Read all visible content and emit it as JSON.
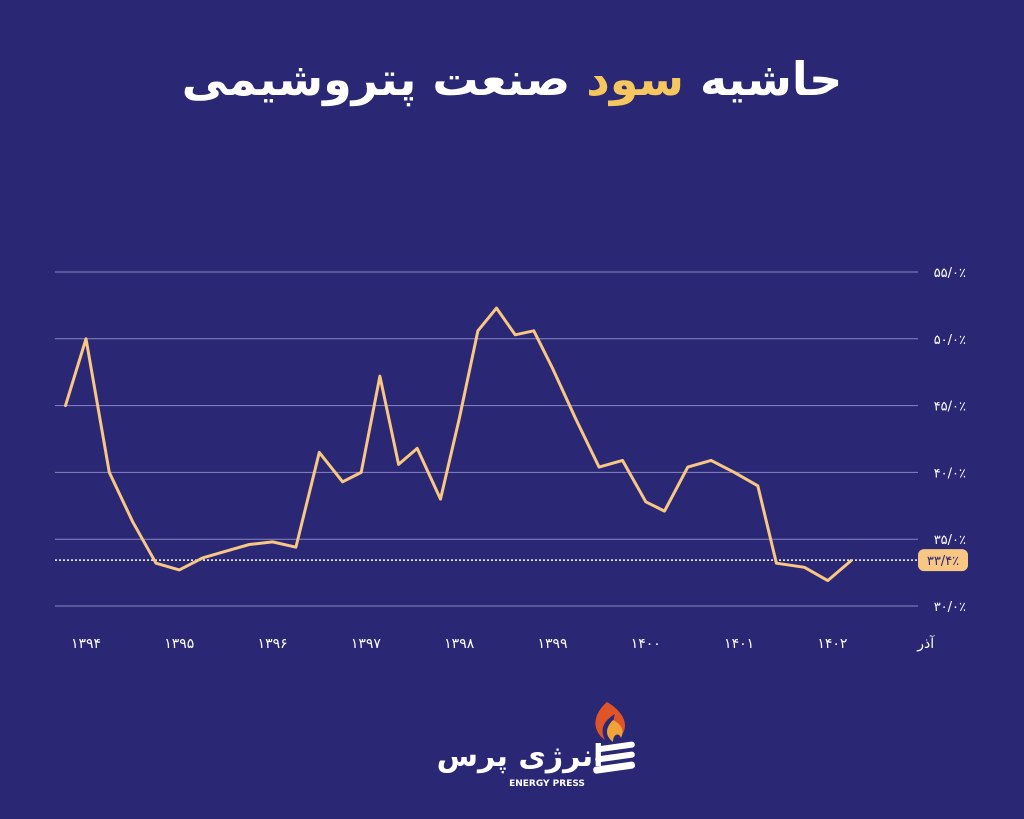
{
  "title": {
    "part_white": "حاشیه",
    "part_accent": "سود",
    "part_white2": "صنعت پتروشیمی"
  },
  "colors": {
    "background": "#2a2775",
    "line": "#f9c784",
    "grid": "#8a87c4",
    "accent": "#f6c75f",
    "badge": "#f9c784"
  },
  "chart_data": {
    "type": "line",
    "title": "حاشیه سود صنعت پتروشیمی",
    "xlabel": "",
    "ylabel": "",
    "ylim": [
      30,
      55
    ],
    "grid": true,
    "y_ticks": [
      {
        "value": 30,
        "label": "۳۰/۰٪"
      },
      {
        "value": 35,
        "label": "۳۵/۰٪"
      },
      {
        "value": 40,
        "label": "۴۰/۰٪"
      },
      {
        "value": 45,
        "label": "۴۵/۰٪"
      },
      {
        "value": 50,
        "label": "۵۰/۰٪"
      },
      {
        "value": 55,
        "label": "۵۵/۰٪"
      }
    ],
    "x_ticks": [
      {
        "t": 0.0,
        "label": "۱۳۹۴"
      },
      {
        "t": 1.0,
        "label": "۱۳۹۵"
      },
      {
        "t": 2.0,
        "label": "۱۳۹۶"
      },
      {
        "t": 3.0,
        "label": "۱۳۹۷"
      },
      {
        "t": 4.0,
        "label": "۱۳۹۸"
      },
      {
        "t": 5.0,
        "label": "۱۳۹۹"
      },
      {
        "t": 6.0,
        "label": "۱۴۰۰"
      },
      {
        "t": 7.0,
        "label": "۱۴۰۱"
      },
      {
        "t": 8.0,
        "label": "۱۴۰۲"
      },
      {
        "t": 9.0,
        "label": "آذر"
      }
    ],
    "reference": {
      "value": 33.4,
      "label": "۳۳/۴٪"
    },
    "series": [
      {
        "values": [
          {
            "t": -0.22,
            "y": 45.0
          },
          {
            "t": 0.0,
            "y": 50.0
          },
          {
            "t": 0.25,
            "y": 40.0
          },
          {
            "t": 0.5,
            "y": 36.3
          },
          {
            "t": 0.75,
            "y": 33.2
          },
          {
            "t": 1.0,
            "y": 32.7
          },
          {
            "t": 1.25,
            "y": 33.6
          },
          {
            "t": 1.5,
            "y": 34.1
          },
          {
            "t": 1.75,
            "y": 34.6
          },
          {
            "t": 2.0,
            "y": 34.8
          },
          {
            "t": 2.25,
            "y": 34.4
          },
          {
            "t": 2.5,
            "y": 41.5
          },
          {
            "t": 2.75,
            "y": 39.3
          },
          {
            "t": 2.95,
            "y": 40.0
          },
          {
            "t": 3.15,
            "y": 47.2
          },
          {
            "t": 3.35,
            "y": 40.6
          },
          {
            "t": 3.55,
            "y": 41.8
          },
          {
            "t": 3.8,
            "y": 38.0
          },
          {
            "t": 4.0,
            "y": 44.0
          },
          {
            "t": 4.2,
            "y": 50.6
          },
          {
            "t": 4.4,
            "y": 52.3
          },
          {
            "t": 4.6,
            "y": 50.3
          },
          {
            "t": 4.8,
            "y": 50.6
          },
          {
            "t": 5.0,
            "y": 47.8
          },
          {
            "t": 5.25,
            "y": 44.0
          },
          {
            "t": 5.5,
            "y": 40.4
          },
          {
            "t": 5.75,
            "y": 40.9
          },
          {
            "t": 6.0,
            "y": 37.8
          },
          {
            "t": 6.2,
            "y": 37.1
          },
          {
            "t": 6.45,
            "y": 40.4
          },
          {
            "t": 6.7,
            "y": 40.9
          },
          {
            "t": 6.95,
            "y": 40.0
          },
          {
            "t": 7.2,
            "y": 39.0
          },
          {
            "t": 7.4,
            "y": 33.2
          },
          {
            "t": 7.7,
            "y": 32.9
          },
          {
            "t": 7.95,
            "y": 31.9
          },
          {
            "t": 8.2,
            "y": 33.4
          }
        ]
      }
    ]
  },
  "logo": {
    "fa": "انرژی پرس",
    "en": "ENERGY PRESS"
  }
}
